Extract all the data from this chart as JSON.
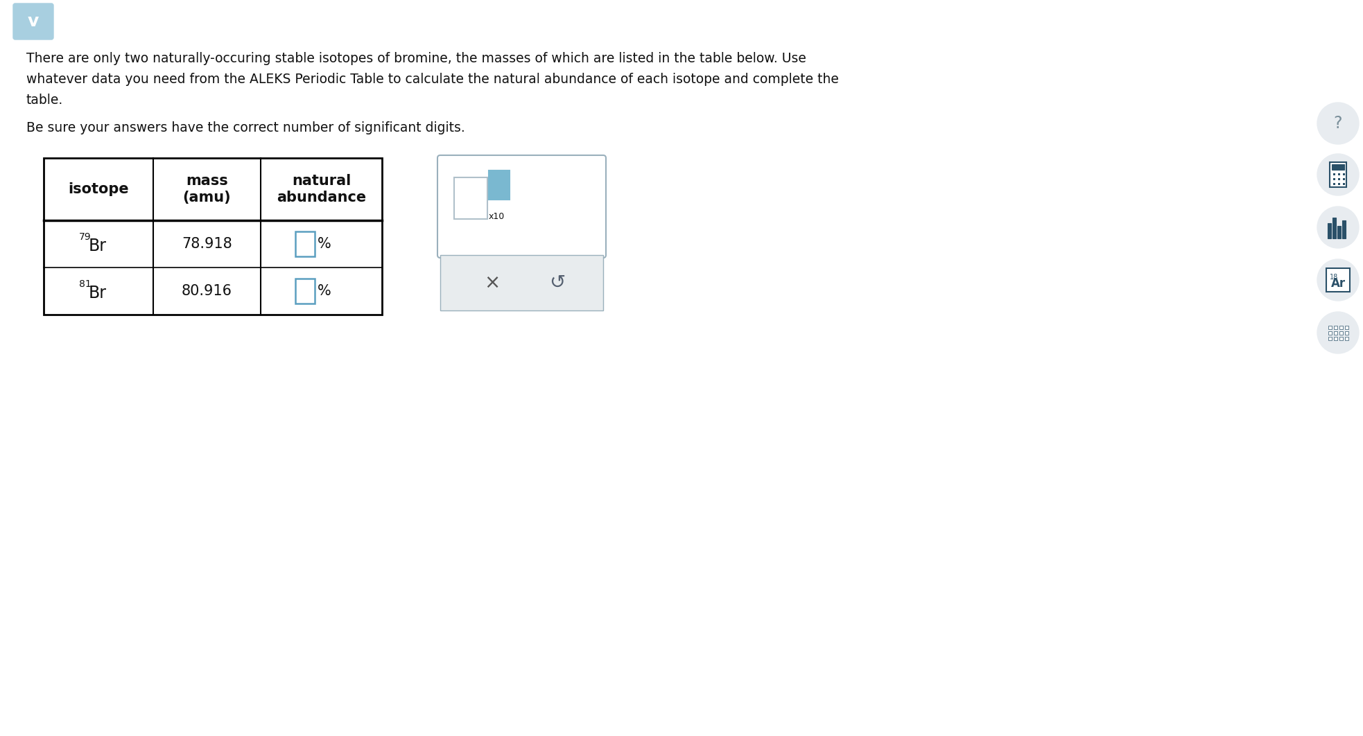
{
  "bg_color": "#ffffff",
  "para_line1": "There are only two naturally-occuring stable isotopes of bromine, the masses of which are listed in the table below. Use",
  "para_line2": "whatever data you need from the ALEKS Periodic Table to calculate the natural abundance of each isotope and complete the",
  "para_line3": "table.",
  "sig_digits_text": "Be sure your answers have the correct number of significant digits.",
  "row1_sup": "79",
  "row1_sym": "Br",
  "row1_mass": "78.918",
  "row2_sup": "81",
  "row2_sym": "Br",
  "row2_mass": "80.916",
  "percent_sign": "%",
  "chevron_color": "#a8cfe0",
  "input_box_color": "#5b9fc0",
  "input_box_fill": "#ffffff",
  "panel_bg": "#e8ecee",
  "panel_border": "#9ab0bc",
  "sidebar_circle_color": "#e8ecf0",
  "question_mark_color": "#7a8f9a",
  "sidebar_icon_color": "#2a5068",
  "x10_teal": "#7ab8d0",
  "x10_gray": "#b0c0ca",
  "text_color": "#111111",
  "table_border_color": "#000000",
  "x_icon_color": "#555555",
  "refresh_icon_color": "#556070"
}
